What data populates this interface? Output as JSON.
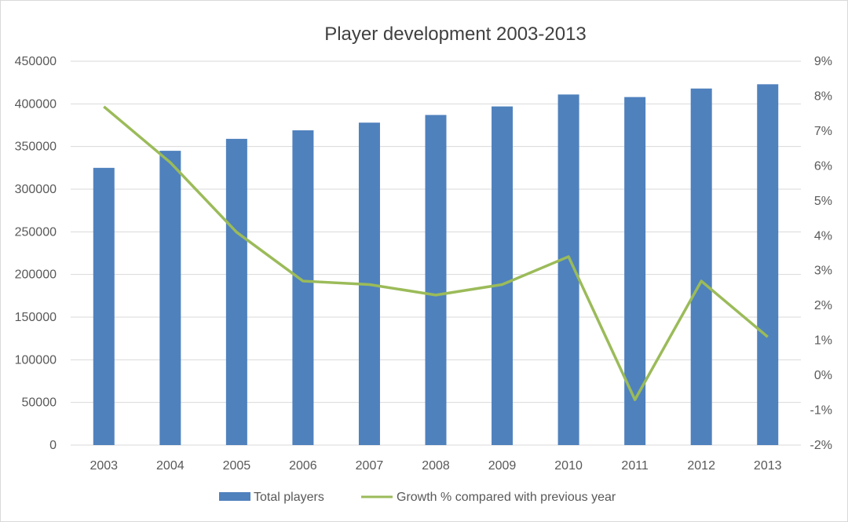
{
  "chart_data": {
    "type": "bar",
    "title": "Player development 2003-2013",
    "categories": [
      "2003",
      "2004",
      "2005",
      "2006",
      "2007",
      "2008",
      "2009",
      "2010",
      "2011",
      "2012",
      "2013"
    ],
    "series": [
      {
        "name": "Total players",
        "type": "bar",
        "axis": "left",
        "color": "#4f81bd",
        "values": [
          325000,
          345000,
          359000,
          369000,
          378000,
          387000,
          397000,
          411000,
          408000,
          418000,
          423000
        ]
      },
      {
        "name": "Growth % compared with previous year",
        "type": "line",
        "axis": "right",
        "color": "#9bbb59",
        "values": [
          7.7,
          6.1,
          4.1,
          2.7,
          2.6,
          2.3,
          2.6,
          3.4,
          -0.7,
          2.7,
          1.1
        ]
      }
    ],
    "y_left": {
      "min": 0,
      "max": 450000,
      "step": 50000,
      "ticks": [
        "0",
        "50000",
        "100000",
        "150000",
        "200000",
        "250000",
        "300000",
        "350000",
        "400000",
        "450000"
      ]
    },
    "y_right": {
      "min": -2,
      "max": 9,
      "step": 1,
      "ticks": [
        "-2%",
        "-1%",
        "0%",
        "1%",
        "2%",
        "3%",
        "4%",
        "5%",
        "6%",
        "7%",
        "8%",
        "9%"
      ]
    },
    "grid": true,
    "legend_position": "bottom"
  }
}
